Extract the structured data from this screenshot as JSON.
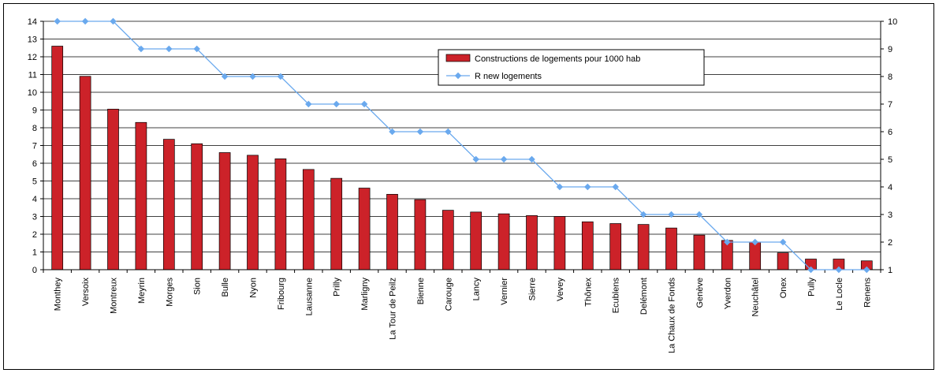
{
  "chart_data": {
    "type": "bar",
    "categories": [
      "Monthey",
      "Versoix",
      "Montreux",
      "Meyrin",
      "Morges",
      "Sion",
      "Bulle",
      "Nyon",
      "Fribourg",
      "Lausanne",
      "Prilly",
      "Marligny",
      "La Tour de Peilz",
      "Bienne",
      "Carouge",
      "Lancy",
      "Vernier",
      "Sierre",
      "Vevey",
      "Thônex",
      "Ecublens",
      "Delémont",
      "La Chaux de Fonds",
      "Genève",
      "Yverdon",
      "Neuchâtel",
      "Onex",
      "Pully",
      "Le Locle",
      "Renens"
    ],
    "series": [
      {
        "name": "Constructions de logements pour 1000 hab",
        "type": "bar",
        "axis": "left",
        "color": "#cc2229",
        "values": [
          12.6,
          10.9,
          9.05,
          8.3,
          7.35,
          7.1,
          6.6,
          6.45,
          6.25,
          5.65,
          5.15,
          4.6,
          4.25,
          3.95,
          3.35,
          3.25,
          3.15,
          3.05,
          3.0,
          2.7,
          2.6,
          2.55,
          2.35,
          1.95,
          1.65,
          1.55,
          0.95,
          0.6,
          0.6,
          0.5
        ]
      },
      {
        "name": "R new logements",
        "type": "line",
        "axis": "right",
        "color": "#6aa9ee",
        "values": [
          10,
          10,
          10,
          9,
          9,
          9,
          8,
          8,
          8,
          7,
          7,
          7,
          6,
          6,
          6,
          5,
          5,
          5,
          4,
          4,
          4,
          3,
          3,
          3,
          2,
          2,
          2,
          1,
          1,
          1
        ]
      }
    ],
    "y_left": {
      "min": 0,
      "max": 14,
      "ticks": [
        0,
        1,
        2,
        3,
        4,
        5,
        6,
        7,
        8,
        9,
        10,
        11,
        12,
        13,
        14
      ]
    },
    "y_right": {
      "min": 1,
      "max": 10,
      "ticks": [
        1,
        2,
        3,
        4,
        5,
        6,
        7,
        8,
        9,
        10
      ]
    },
    "grid": true,
    "legend_position": "top-right"
  }
}
